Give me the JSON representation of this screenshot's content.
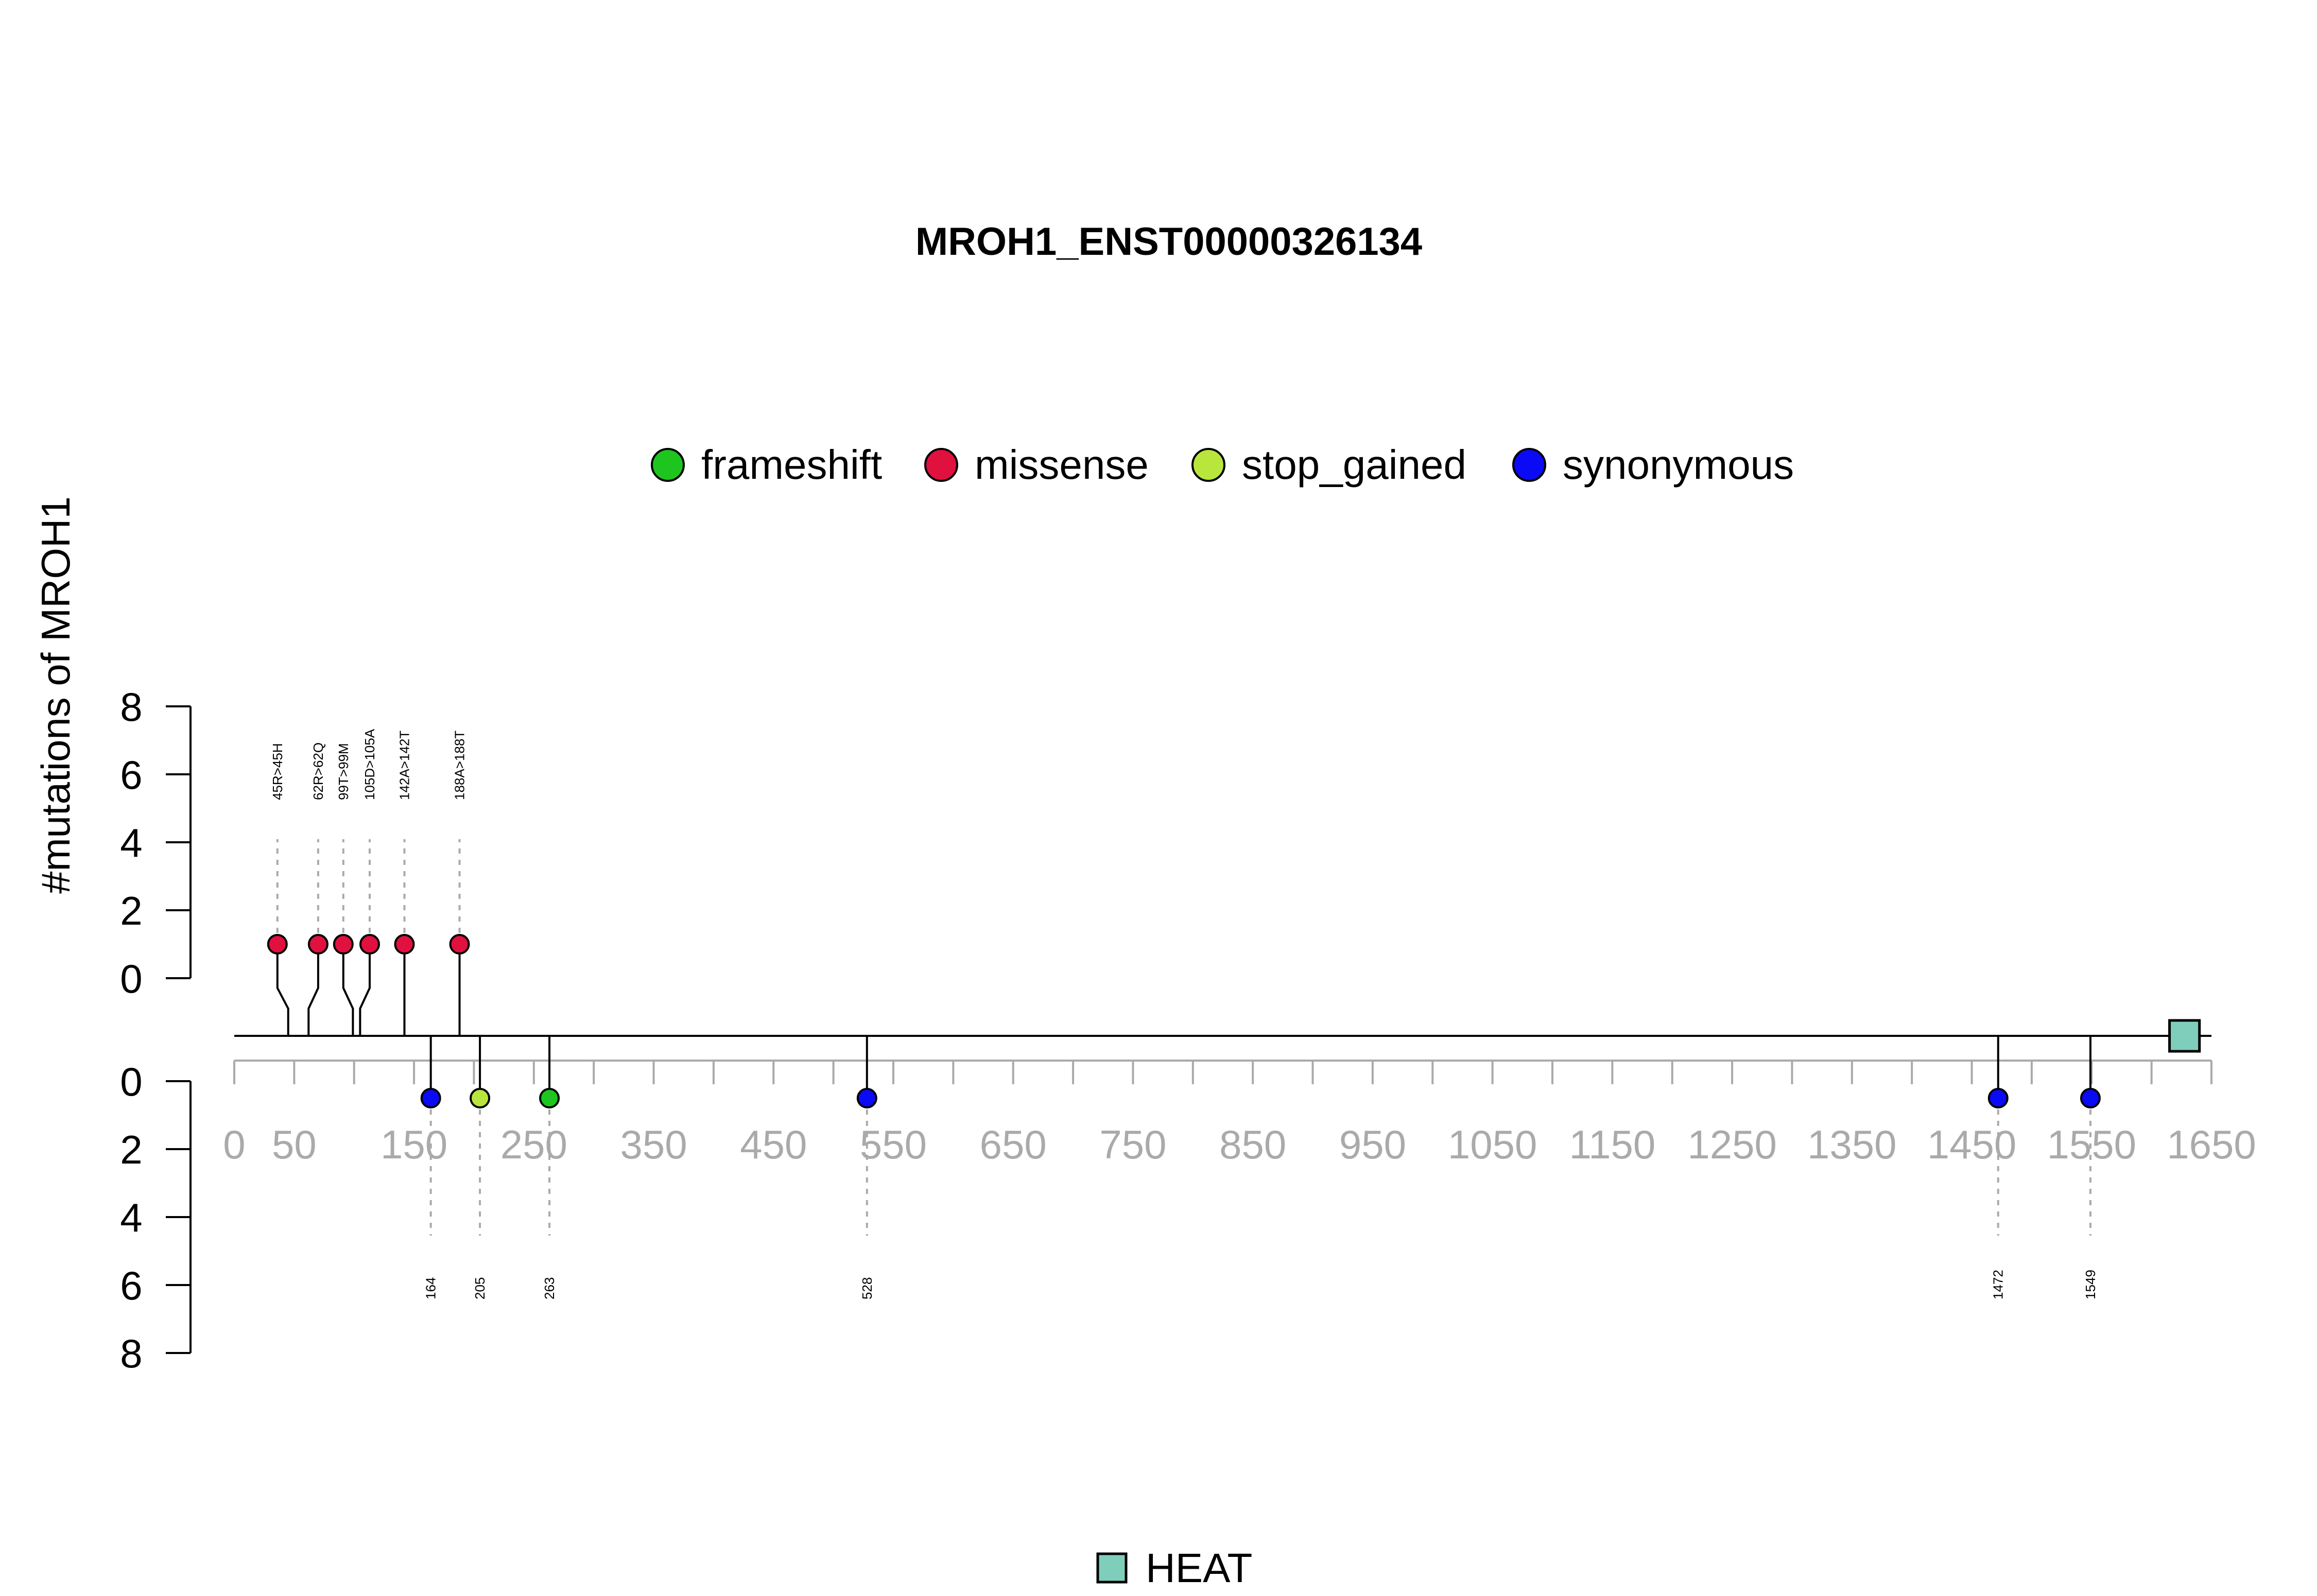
{
  "chart_data": {
    "type": "lollipop",
    "title": "MROH1_ENST00000326134",
    "ylabel": "#mutations of MROH1",
    "xlim": [
      0,
      1650
    ],
    "x_ticks": [
      0,
      50,
      150,
      250,
      350,
      450,
      550,
      650,
      750,
      850,
      950,
      1050,
      1150,
      1250,
      1350,
      1450,
      1550,
      1650
    ],
    "minor_ticks": [
      0,
      50,
      100,
      150,
      200,
      250,
      300,
      350,
      400,
      450,
      500,
      550,
      600,
      650,
      700,
      750,
      800,
      850,
      900,
      950,
      1000,
      1050,
      1100,
      1150,
      1200,
      1250,
      1300,
      1350,
      1400,
      1450,
      1500,
      1550,
      1600,
      1650
    ],
    "y_ticks": [
      0,
      2,
      4,
      6,
      8
    ],
    "legend": [
      {
        "label": "frameshift",
        "color": "#1ec51e"
      },
      {
        "label": "missense",
        "color": "#e0103f"
      },
      {
        "label": "stop_gained",
        "color": "#b8e63c"
      },
      {
        "label": "synonymous",
        "color": "#0a0af5"
      }
    ],
    "mutations_top": [
      {
        "position": 45,
        "label": "45R>45H",
        "count": 1,
        "type": "missense",
        "display_x": 36
      },
      {
        "position": 62,
        "label": "62R>62Q",
        "count": 1,
        "type": "missense",
        "display_x": 70
      },
      {
        "position": 99,
        "label": "99T>99M",
        "count": 1,
        "type": "missense",
        "display_x": 91
      },
      {
        "position": 105,
        "label": "105D>105A",
        "count": 1,
        "type": "missense",
        "display_x": 113
      },
      {
        "position": 142,
        "label": "142A>142T",
        "count": 1,
        "type": "missense",
        "display_x": 142
      },
      {
        "position": 188,
        "label": "188A>188T",
        "count": 1,
        "type": "missense",
        "display_x": 188
      }
    ],
    "mutations_bottom": [
      {
        "position": 164,
        "label": "164",
        "count": 1,
        "type": "synonymous"
      },
      {
        "position": 205,
        "label": "205",
        "count": 1,
        "type": "stop_gained"
      },
      {
        "position": 263,
        "label": "263",
        "count": 1,
        "type": "frameshift"
      },
      {
        "position": 528,
        "label": "528",
        "count": 1,
        "type": "synonymous"
      },
      {
        "position": 1472,
        "label": "1472",
        "count": 1,
        "type": "synonymous"
      },
      {
        "position": 1549,
        "label": "1549",
        "count": 1,
        "type": "synonymous"
      }
    ],
    "domains": [
      {
        "name": "HEAT",
        "start": 1615,
        "end": 1640,
        "color": "#7fcdbb"
      }
    ]
  }
}
